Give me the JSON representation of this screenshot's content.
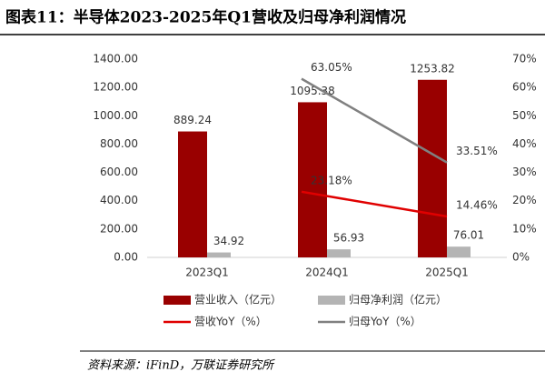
{
  "chart_data": {
    "type": "bar",
    "title": "图表11：半导体2023-2025年Q1营收及归母净利润情况",
    "categories": [
      "2023Q1",
      "2024Q1",
      "2025Q1"
    ],
    "series": [
      {
        "name": "营业收入（亿元）",
        "type": "bar",
        "color": "#990000",
        "values": [
          889.24,
          1095.38,
          1253.82
        ]
      },
      {
        "name": "归母净利润（亿元）",
        "type": "bar",
        "color": "#b4b4b4",
        "values": [
          34.92,
          56.93,
          76.01
        ]
      },
      {
        "name": "营收YoY（%）",
        "type": "line",
        "axis": "y2",
        "color": "#e00000",
        "values": [
          null,
          23.18,
          14.46
        ],
        "value_labels": [
          null,
          "23.18%",
          "14.46%"
        ]
      },
      {
        "name": "归母YoY（%）",
        "type": "line",
        "axis": "y2",
        "color": "#808080",
        "values": [
          null,
          63.05,
          33.51
        ],
        "value_labels": [
          null,
          "63.05%",
          "33.51%"
        ]
      }
    ],
    "ylim": [
      0,
      1400
    ],
    "yticks": [
      {
        "value": 0,
        "label": "0.00"
      },
      {
        "value": 200,
        "label": "200.00"
      },
      {
        "value": 400,
        "label": "400.00"
      },
      {
        "value": 600,
        "label": "600.00"
      },
      {
        "value": 800,
        "label": "800.00"
      },
      {
        "value": 1000,
        "label": "1000.00"
      },
      {
        "value": 1200,
        "label": "1200.00"
      },
      {
        "value": 1400,
        "label": "1400.00"
      }
    ],
    "y2lim": [
      0,
      70
    ],
    "y2ticks": [
      {
        "value": 0,
        "label": "0%"
      },
      {
        "value": 10,
        "label": "10%"
      },
      {
        "value": 20,
        "label": "20%"
      },
      {
        "value": 30,
        "label": "30%"
      },
      {
        "value": 40,
        "label": "40%"
      },
      {
        "value": 50,
        "label": "50%"
      },
      {
        "value": 60,
        "label": "60%"
      },
      {
        "value": 70,
        "label": "70%"
      }
    ],
    "grid": false
  },
  "source": "资料来源：iFinD，万联证券研究所"
}
